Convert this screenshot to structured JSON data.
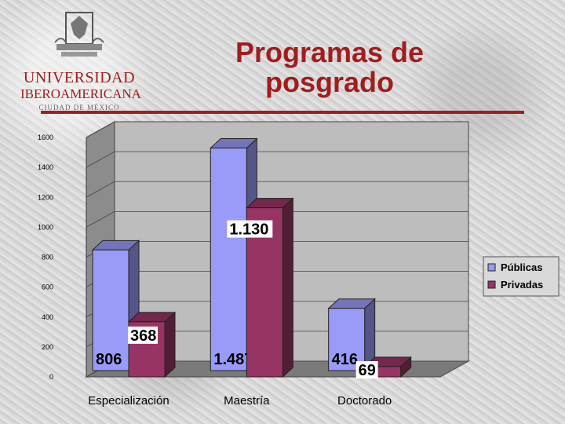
{
  "logo": {
    "line1": "UNIVERSIDAD",
    "line2": "IBEROAMERICANA",
    "line3": "CIUDAD DE MÉXICO"
  },
  "title": "Programas de posgrado",
  "colors": {
    "publicas": "#9a9af8",
    "privadas": "#983464",
    "title": "#a11d1d"
  },
  "chart_data": {
    "type": "bar",
    "categories": [
      "Especialización",
      "Maestría",
      "Doctorado"
    ],
    "series": [
      {
        "name": "Públicas",
        "values": [
          806,
          1487,
          416
        ],
        "labels": [
          "806",
          "1.487",
          "416"
        ]
      },
      {
        "name": "Privadas",
        "values": [
          368,
          1130,
          69
        ],
        "labels": [
          "368",
          "1.130",
          "69"
        ]
      }
    ],
    "yticks": [
      0,
      200,
      400,
      600,
      800,
      1000,
      1200,
      1400,
      1600
    ],
    "ylim": [
      0,
      1600
    ],
    "grid": true,
    "legend_position": "right",
    "style": "3d-clustered"
  }
}
